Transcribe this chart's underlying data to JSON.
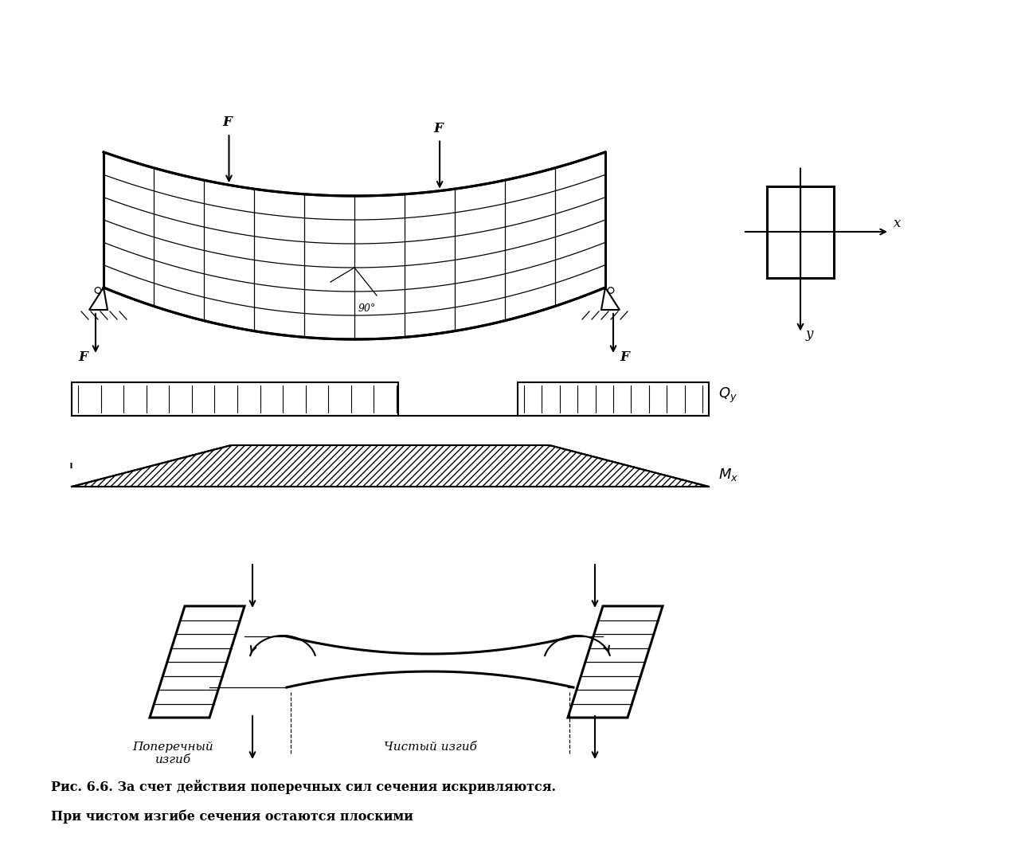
{
  "background_color": "#ffffff",
  "caption_line1": "Рис. 6.6. За счет действия поперечных сил сечения искривляются.",
  "caption_line2": "При чистом изгибе сечения остаются плоскими",
  "label_F": "F",
  "label_Qy": "$Q_y$",
  "label_Mx": "$M_x$",
  "label_x": "x",
  "label_y": "y",
  "label_angle": "90°",
  "label_transverse": "Поперечный\nизгиб",
  "label_pure": "Чистый изгиб"
}
